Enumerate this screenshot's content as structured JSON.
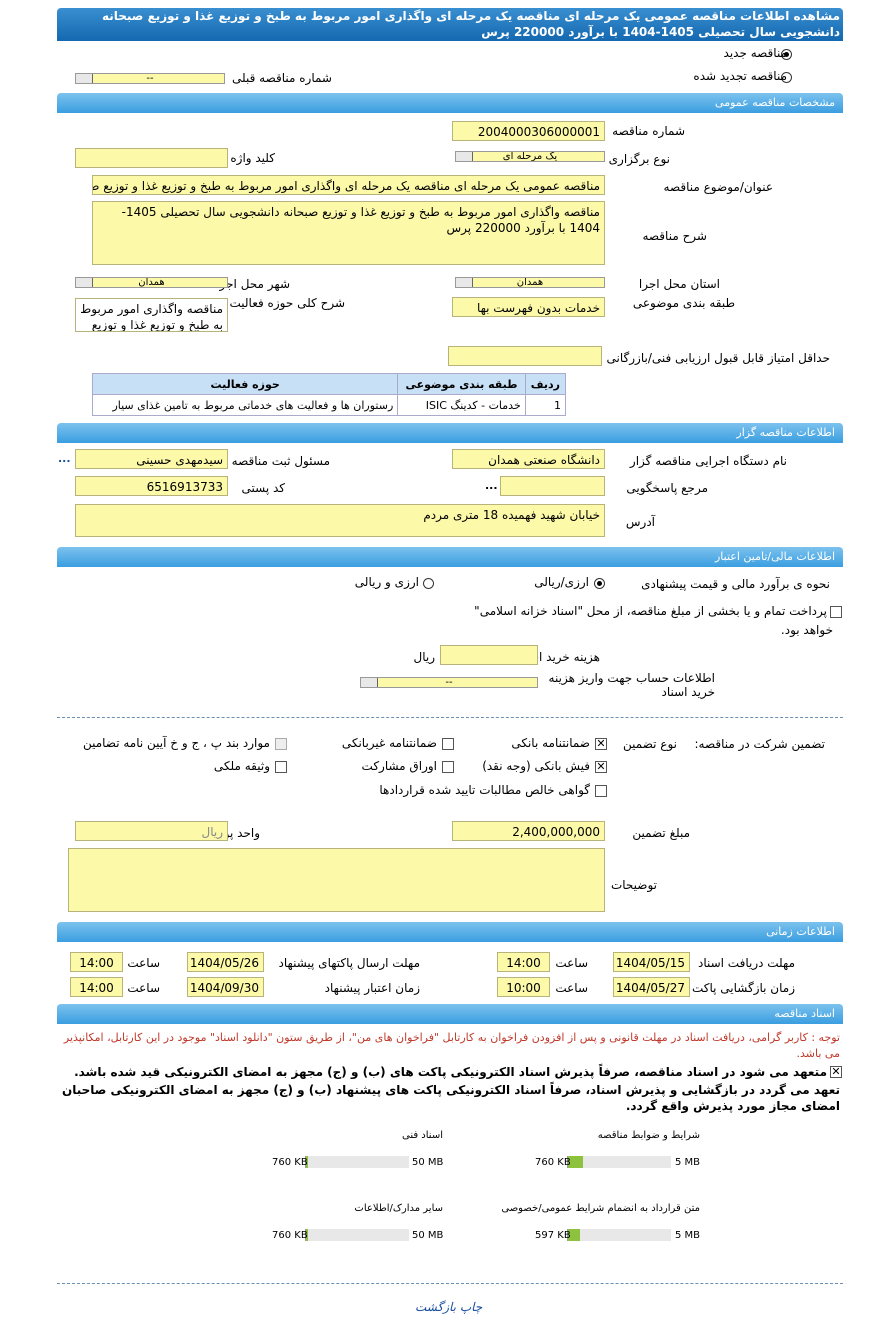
{
  "title": "مشاهده اطلاعات مناقصه عمومی یک مرحله ای مناقصه یک مرحله ای واگذاری امور مربوط به طبخ و توزیع غذا و توزیع صبحانه دانشجویی سال تحصیلی 1405-1404 با برآورد 220000 پرس",
  "tender_type": {
    "new": "مناقصه جدید",
    "renewed": "مناقصه تجدید شده",
    "selected": "new",
    "prev_label": "شماره مناقصه قبلی",
    "prev_value": "--"
  },
  "general": {
    "header": "مشخصات مناقصه عمومی",
    "number_label": "شماره مناقصه",
    "number": "2004000306000001",
    "type_label": "نوع برگزاری",
    "type": "یک مرحله ای",
    "keyword_label": "کلید واژه",
    "keyword": "",
    "subject_label": "عنوان/موضوع مناقصه",
    "subject": "مناقصه عمومی یک مرحله ای مناقصه یک مرحله ای واگذاری امور مربوط به طبخ و توزیع غذا و توزیع صبحانه",
    "desc_label": "شرح مناقصه",
    "desc": "مناقصه واگذاری امور مربوط به طبخ و توزیع غذا و توزیع صبحانه دانشجویی سال تحصیلی 1405-1404  با برآورد 220000 پرس",
    "province_label": "استان محل اجرا",
    "province": "همدان",
    "city_label": "شهر محل اجرا",
    "city": "همدان",
    "category_label": "طبقه بندی موضوعی",
    "category": "خدمات بدون فهرست بها",
    "scope_label": "شرح کلی حوزه فعالیت",
    "scope": "مناقصه واگذاری امور مربوط به طبخ و توزیع غذا و توزیع",
    "min_score_label": "حداقل امتیاز قابل قبول ارزیابی فنی/بازرگانی",
    "min_score": "",
    "table": {
      "headers": [
        "ردیف",
        "طبقه بندی موضوعی",
        "حوزه فعالیت"
      ],
      "rows": [
        [
          "1",
          "خدمات - کدینگ ISIC",
          "رستوران ها و فعالیت های خدماتی مربوط به تامین غذای سیار"
        ]
      ]
    }
  },
  "organizer": {
    "header": "اطلاعات مناقصه گزار",
    "org_label": "نام دستگاه اجرایی مناقصه گزار",
    "org": "دانشگاه صنعتی همدان",
    "resp_label": "مسئول ثبت مناقصه",
    "resp": "سیدمهدی حسینی",
    "ref_label": "مرجع پاسخگویی",
    "ref": "",
    "more": "...",
    "postal_label": "کد پستی",
    "postal": "6516913733",
    "address_label": "آدرس",
    "address": "خیابان شهید فهمیده 18 متری مردم"
  },
  "finance": {
    "header": "اطلاعات مالی/تامین اعتبار",
    "method_label": "نحوه ی برآورد مالی و قیمت پیشنهادی",
    "opt1": "ارزی/ریالی",
    "opt2": "ارزی و ریالی",
    "selected": "opt1",
    "treasury": "پرداخت تمام و یا بخشی از مبلغ مناقصه، از محل \"اسناد خزانه اسلامی\"",
    "treasury2": "خواهد بود.",
    "doc_cost_label": "هزینه خرید اسناد",
    "doc_cost": "",
    "rial": "ریال",
    "account_label": "اطلاعات حساب جهت واریز هزینه خرید اسناد",
    "account": "--"
  },
  "guarantee": {
    "label": "تضمین شرکت در مناقصه:",
    "type_label": "نوع تضمین",
    "options": [
      {
        "label": "ضمانتنامه بانکی",
        "checked": true
      },
      {
        "label": "ضمانتنامه غیربانکی",
        "checked": false
      },
      {
        "label": "موارد بند پ ، ج و خ آیین نامه تضامین",
        "checked": false,
        "disabled": true
      },
      {
        "label": "فیش بانکی (وجه نقد)",
        "checked": true
      },
      {
        "label": "اوراق مشارکت",
        "checked": false
      },
      {
        "label": "وثیقه ملکی",
        "checked": false
      },
      {
        "label": "گواهی خالص مطالبات تایید شده قراردادها",
        "checked": false
      }
    ],
    "amount_label": "مبلغ تضمین",
    "amount": "2,400,000,000",
    "currency_label": "واحد پول",
    "currency": "ریال",
    "notes_label": "توضیحات",
    "notes": ""
  },
  "timing": {
    "header": "اطلاعات زمانی",
    "time_label": "ساعت",
    "receive_label": "مهلت دریافت اسناد",
    "receive_date": "1404/05/15",
    "receive_time": "14:00",
    "send_label": "مهلت ارسال پاکتهای پیشنهاد",
    "send_date": "1404/05/26",
    "send_time": "14:00",
    "open_label": "زمان بازگشایی پاکت ها",
    "open_date": "1404/05/27",
    "open_time": "10:00",
    "valid_label": "زمان اعتبار پیشنهاد",
    "valid_date": "1404/09/30",
    "valid_time": "14:00"
  },
  "docs": {
    "header": "اسناد مناقصه",
    "note": "توجه : کاربر گرامی، دریافت اسناد در مهلت قانونی و پس از افزودن فراخوان به کارتابل \"فراخوان های من\"، از طریق ستون \"دانلود اسناد\" موجود در این کارتابل، امکانپذیر می باشد.",
    "commit1": "متعهد می شود در اسناد مناقصه، صرفاً پذیرش اسناد الکترونیکی پاکت های (ب) و (ج) مجهز به امضای الکترونیکی قید شده باشد.",
    "commit2": "تعهد می گردد در بازگشایی و پذیرش اسناد، صرفاً اسناد الکترونیکی پاکت های پیشنهاد (ب) و (ج) مجهز به امضای الکترونیکی صاحبان امضای مجاز مورد پذیرش واقع گردد.",
    "files": [
      {
        "label": "شرایط و ضوابط مناقصه",
        "size": "760 KB",
        "max": "5 MB",
        "fraction": 0.148
      },
      {
        "label": "اسناد فنی",
        "size": "760 KB",
        "max": "50 MB",
        "fraction": 0.015
      },
      {
        "label": "متن قرارداد به انضمام شرایط عمومی/خصوصی",
        "size": "597 KB",
        "max": "5 MB",
        "fraction": 0.117
      },
      {
        "label": "سایر مدارک/اطلاعات",
        "size": "760 KB",
        "max": "50 MB",
        "fraction": 0.015
      }
    ]
  },
  "footer": {
    "print": "چاپ",
    "back": "بازگشت"
  },
  "colors": {
    "title_bar": "#1468b0",
    "section": "#5ab0e8",
    "input": "#fcf9a8",
    "bar_fill": "#8dc23f",
    "note": "#c0392b"
  }
}
